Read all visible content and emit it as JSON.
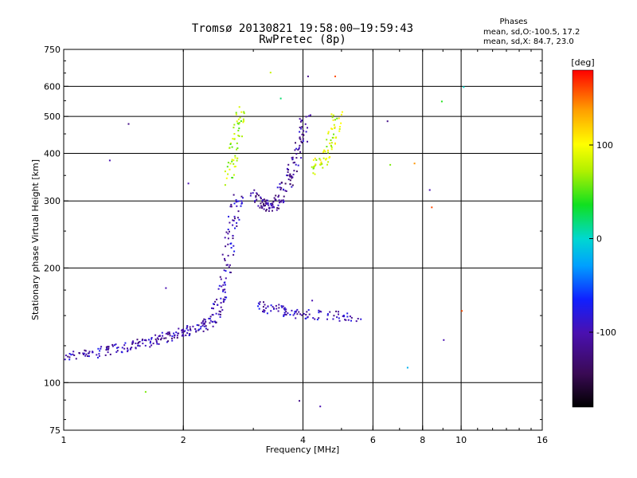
{
  "title": "Tromsø 20130821 19:58:00–19:59:43",
  "subtitle": "RwPretec (8p)",
  "stats": {
    "heading": "Phases",
    "line1": "mean, sd,O:-100.5, 17.2",
    "line2": "mean, sd,X:  84.7, 23.0"
  },
  "colorbar": {
    "label": "[deg]",
    "range": [
      -180,
      180
    ],
    "ticks": [
      {
        "value": 100,
        "label": "100"
      },
      {
        "value": 0,
        "label": "0"
      },
      {
        "value": -100,
        "label": "-100"
      }
    ]
  },
  "chart_data": {
    "type": "scatter",
    "title": "Tromsø 20130821 19:58:00–19:59:43",
    "subtitle": "RwPretec (8p)",
    "xlabel": "Frequency [MHz]",
    "ylabel": "Stationary phase Virtual Height [km]",
    "x_scale": "log",
    "y_scale": "log",
    "xlim": [
      1,
      16
    ],
    "ylim": [
      75,
      750
    ],
    "xticks": [
      1,
      2,
      4,
      6,
      8,
      10,
      16
    ],
    "yticks": [
      75,
      100,
      200,
      300,
      400,
      500,
      600,
      750
    ],
    "x_gridlines": [
      2,
      4,
      6,
      8,
      10
    ],
    "y_gridlines": [
      100,
      200,
      300,
      400,
      500,
      600
    ],
    "grid": true,
    "color_scale": "phase [deg], -180 to 180",
    "traces": [
      {
        "description": "O-mode E/F1 trace (blue/violet)",
        "phase_deg": -100,
        "points": [
          [
            1.02,
            118
          ],
          [
            1.1,
            119
          ],
          [
            1.2,
            120
          ],
          [
            1.3,
            122
          ],
          [
            1.4,
            124
          ],
          [
            1.5,
            126
          ],
          [
            1.6,
            128
          ],
          [
            1.7,
            130
          ],
          [
            1.8,
            132
          ],
          [
            1.9,
            134
          ],
          [
            2.0,
            136
          ],
          [
            2.1,
            138
          ],
          [
            2.2,
            141
          ],
          [
            2.3,
            144
          ],
          [
            2.4,
            150
          ],
          [
            2.45,
            160
          ],
          [
            2.5,
            175
          ],
          [
            2.55,
            195
          ],
          [
            2.6,
            230
          ],
          [
            2.65,
            260
          ],
          [
            2.7,
            290
          ],
          [
            2.75,
            310
          ]
        ]
      },
      {
        "description": "O-mode F2 trace (violet)",
        "phase_deg": -110,
        "points": [
          [
            3.0,
            320
          ],
          [
            3.1,
            300
          ],
          [
            3.2,
            295
          ],
          [
            3.3,
            290
          ],
          [
            3.4,
            295
          ],
          [
            3.5,
            310
          ],
          [
            3.6,
            330
          ],
          [
            3.7,
            350
          ],
          [
            3.8,
            380
          ],
          [
            3.9,
            420
          ],
          [
            4.0,
            460
          ],
          [
            4.05,
            500
          ]
        ]
      },
      {
        "description": "X-mode F2 trace (yellow/orange)",
        "phase_deg": 85,
        "points": [
          [
            4.2,
            360
          ],
          [
            4.4,
            380
          ],
          [
            4.6,
            400
          ],
          [
            4.7,
            430
          ],
          [
            4.8,
            470
          ],
          [
            4.85,
            520
          ]
        ]
      },
      {
        "description": "X-mode lower trace (orange/yellow)",
        "phase_deg": 70,
        "points": [
          [
            2.6,
            340
          ],
          [
            2.65,
            380
          ],
          [
            2.7,
            430
          ],
          [
            2.75,
            480
          ],
          [
            2.8,
            520
          ]
        ]
      },
      {
        "description": "Sporadic-E trace (violet/blue)",
        "phase_deg": -95,
        "points": [
          [
            3.1,
            160
          ],
          [
            3.3,
            157
          ],
          [
            3.5,
            155
          ],
          [
            3.7,
            154
          ],
          [
            4.0,
            152
          ],
          [
            4.5,
            151
          ],
          [
            5.0,
            150
          ],
          [
            5.5,
            150
          ]
        ]
      }
    ],
    "scattered": [
      {
        "x": 1.3,
        "y": 385,
        "phase_deg": -100
      },
      {
        "x": 1.45,
        "y": 480,
        "phase_deg": -120
      },
      {
        "x": 1.8,
        "y": 178,
        "phase_deg": -100
      },
      {
        "x": 2.05,
        "y": 335,
        "phase_deg": -100
      },
      {
        "x": 3.3,
        "y": 655,
        "phase_deg": 80
      },
      {
        "x": 3.5,
        "y": 560,
        "phase_deg": 20
      },
      {
        "x": 4.1,
        "y": 640,
        "phase_deg": -120
      },
      {
        "x": 4.2,
        "y": 165,
        "phase_deg": -100
      },
      {
        "x": 4.8,
        "y": 640,
        "phase_deg": 160
      },
      {
        "x": 6.5,
        "y": 488,
        "phase_deg": -120
      },
      {
        "x": 6.6,
        "y": 375,
        "phase_deg": 60
      },
      {
        "x": 7.6,
        "y": 378,
        "phase_deg": 140
      },
      {
        "x": 8.3,
        "y": 322,
        "phase_deg": -100
      },
      {
        "x": 8.4,
        "y": 290,
        "phase_deg": 160
      },
      {
        "x": 8.9,
        "y": 550,
        "phase_deg": 40
      },
      {
        "x": 9.0,
        "y": 130,
        "phase_deg": -100
      },
      {
        "x": 10.0,
        "y": 155,
        "phase_deg": 160
      },
      {
        "x": 10.1,
        "y": 600,
        "phase_deg": 0
      },
      {
        "x": 7.3,
        "y": 110,
        "phase_deg": -20
      },
      {
        "x": 3.9,
        "y": 90,
        "phase_deg": -120
      },
      {
        "x": 4.4,
        "y": 87,
        "phase_deg": -100
      },
      {
        "x": 1.6,
        "y": 95,
        "phase_deg": 60
      }
    ]
  }
}
